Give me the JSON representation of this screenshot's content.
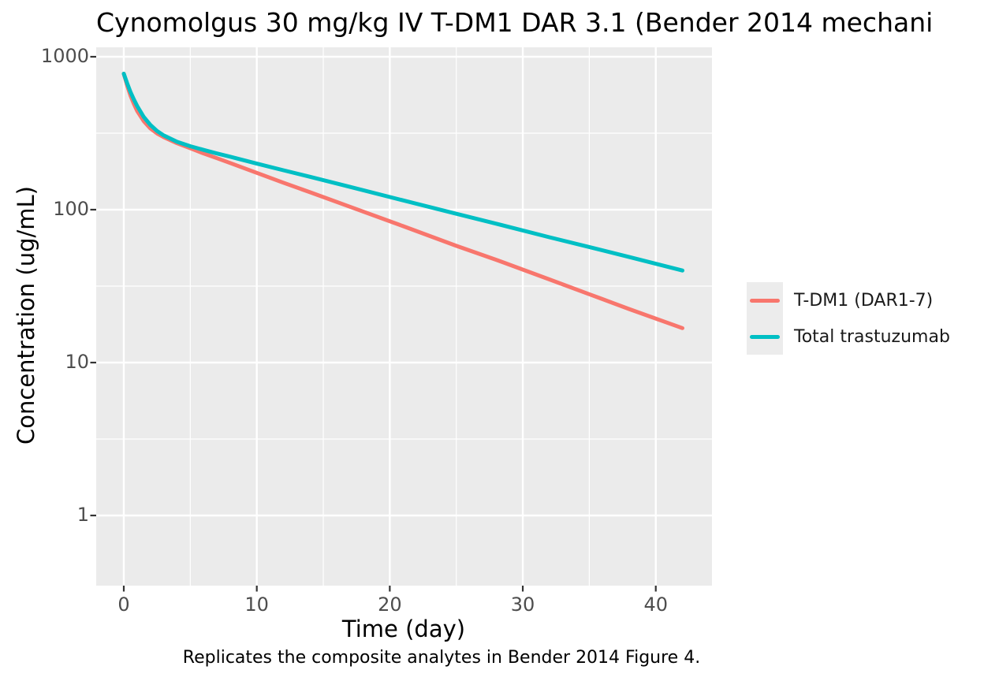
{
  "chart_data": {
    "type": "line",
    "title": "Cynomolgus 30 mg/kg IV T-DM1 DAR 3.1 (Bender 2014 mechani",
    "xlabel": "Time (day)",
    "ylabel": "Concentration (ug/mL)",
    "caption": "Replicates the composite analytes in Bender 2014 Figure 4.",
    "x_scale": "linear",
    "y_scale": "log10",
    "x_ticks": [
      0,
      10,
      20,
      30,
      40
    ],
    "x_minor_ticks": [
      5,
      15,
      25,
      35
    ],
    "y_ticks": [
      1000,
      100,
      10,
      1
    ],
    "y_minor_ticks": [
      316.2,
      31.62,
      3.162
    ],
    "xlim": [
      -2.1,
      44.3
    ],
    "ylim": [
      0.35,
      1150
    ],
    "grid": true,
    "legend_position": "right",
    "panel_bg": "#EBEBEB",
    "grid_color": "#FFFFFF",
    "tick_color": "#333333",
    "tick_label_color": "#4d4d4d",
    "series": [
      {
        "name": "T-DM1 (DAR1-7)",
        "color": "#F8766D",
        "x": [
          0,
          0.25,
          0.5,
          0.75,
          1,
          1.5,
          2,
          2.5,
          3,
          4,
          5,
          6,
          7,
          8,
          10,
          12,
          14,
          17,
          21,
          25,
          28,
          32,
          35,
          38,
          42
        ],
        "y": [
          775,
          650,
          559,
          493,
          443,
          379,
          340,
          315,
          298,
          272,
          252,
          233,
          217,
          202,
          174,
          150,
          130,
          104.5,
          78,
          58,
          47,
          35,
          28,
          22.4,
          16.8
        ]
      },
      {
        "name": "Total trastuzumab",
        "color": "#00BFC4",
        "x": [
          0,
          0.25,
          0.5,
          0.75,
          1,
          1.5,
          2,
          2.5,
          3,
          4,
          5,
          6,
          7,
          8,
          10,
          12,
          14,
          17,
          21,
          25,
          28,
          32,
          35,
          38,
          42
        ],
        "y": [
          775,
          672,
          590,
          527,
          477,
          404,
          358,
          327,
          306,
          278,
          260,
          246,
          233,
          222,
          200,
          181,
          164,
          141,
          115,
          94,
          81,
          66,
          57,
          49,
          40
        ]
      }
    ]
  }
}
